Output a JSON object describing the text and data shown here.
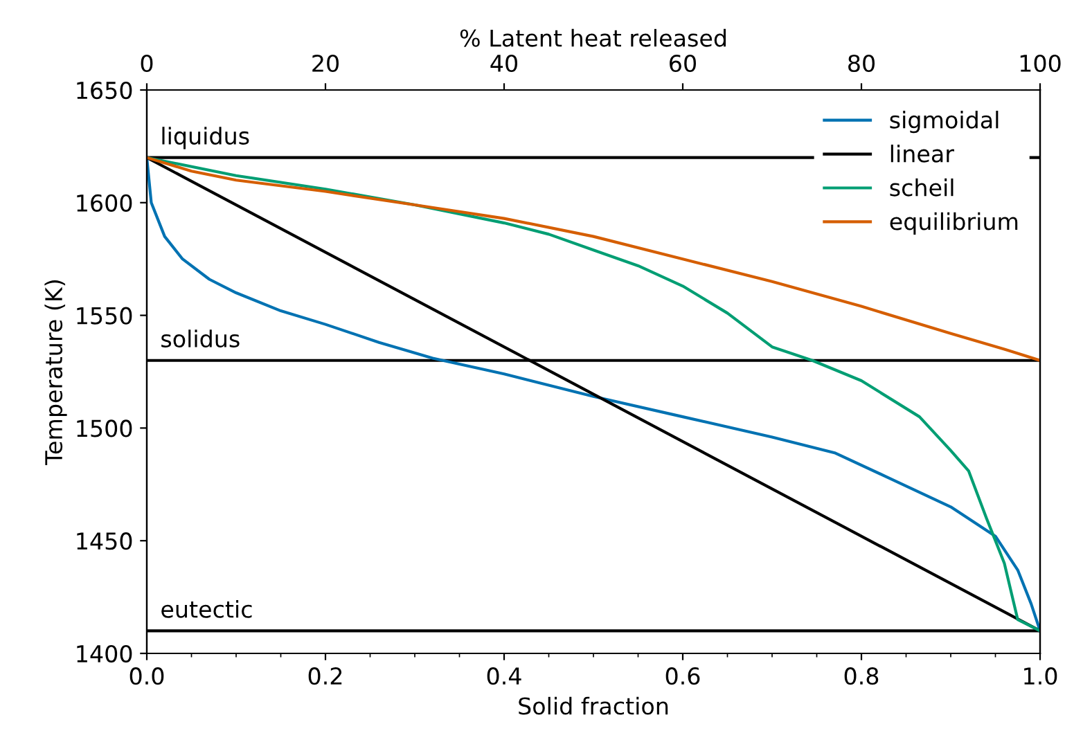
{
  "chart_data": {
    "type": "line",
    "xlabel": "Solid fraction",
    "ylabel": "Temperature (K)",
    "x2label": "% Latent heat released",
    "xlim": [
      0,
      1
    ],
    "xticks": [
      {
        "value": 0,
        "label": "0.0"
      },
      {
        "value": 0.2,
        "label": "0.2"
      },
      {
        "value": 0.4,
        "label": "0.4"
      },
      {
        "value": 0.6,
        "label": "0.6"
      },
      {
        "value": 0.8,
        "label": "0.8"
      },
      {
        "value": 1,
        "label": "1.0"
      }
    ],
    "x2lim": [
      0,
      100
    ],
    "x2ticks": [
      0,
      20,
      40,
      60,
      80,
      100
    ],
    "ylim": [
      1400,
      1650
    ],
    "yticks": [
      1400,
      1450,
      1500,
      1550,
      1600,
      1650
    ],
    "grid": false,
    "legend": "top right",
    "marker": "none",
    "line_style": "solid",
    "ref_lines": [
      {
        "axis": "y",
        "value": 1620,
        "label": "liquidus",
        "color": "#000000"
      },
      {
        "axis": "y",
        "value": 1530,
        "label": "solidus",
        "color": "#000000"
      },
      {
        "axis": "y",
        "value": 1410,
        "label": "eutectic",
        "color": "#000000"
      }
    ],
    "series": [
      {
        "name": "sigmoidal",
        "color": "#0072b2",
        "x": [
          0,
          0.005,
          0.02,
          0.04,
          0.07,
          0.1,
          0.15,
          0.2,
          0.26,
          0.32,
          0.4,
          0.5,
          0.6,
          0.7,
          0.77,
          0.83,
          0.9,
          0.95,
          0.975,
          0.99,
          1.0
        ],
        "values": [
          1620,
          1600,
          1585,
          1575,
          1566,
          1560,
          1552,
          1546,
          1538,
          1531,
          1524,
          1514,
          1505,
          1496,
          1489,
          1478,
          1465,
          1452,
          1437,
          1422,
          1410
        ]
      },
      {
        "name": "linear",
        "color": "#000000",
        "x": [
          0,
          1
        ],
        "values": [
          1620,
          1410
        ]
      },
      {
        "name": "scheil",
        "color": "#009e73",
        "x": [
          0,
          0.1,
          0.2,
          0.3,
          0.4,
          0.45,
          0.5,
          0.55,
          0.6,
          0.65,
          0.7,
          0.745,
          0.8,
          0.865,
          0.9,
          0.92,
          0.94,
          0.96,
          0.975,
          1.0
        ],
        "values": [
          1620,
          1612,
          1606,
          1599,
          1591,
          1586,
          1579,
          1572,
          1563,
          1551,
          1536,
          1530,
          1521,
          1505,
          1490,
          1481,
          1460,
          1440,
          1415,
          1410
        ]
      },
      {
        "name": "equilibrium",
        "color": "#d55e00",
        "x": [
          0,
          0.05,
          0.1,
          0.2,
          0.3,
          0.4,
          0.5,
          0.6,
          0.7,
          0.8,
          0.9,
          0.96,
          1.0
        ],
        "values": [
          1620,
          1614,
          1610,
          1605,
          1599,
          1593,
          1585,
          1575,
          1565,
          1554,
          1542,
          1535,
          1530
        ]
      }
    ]
  }
}
